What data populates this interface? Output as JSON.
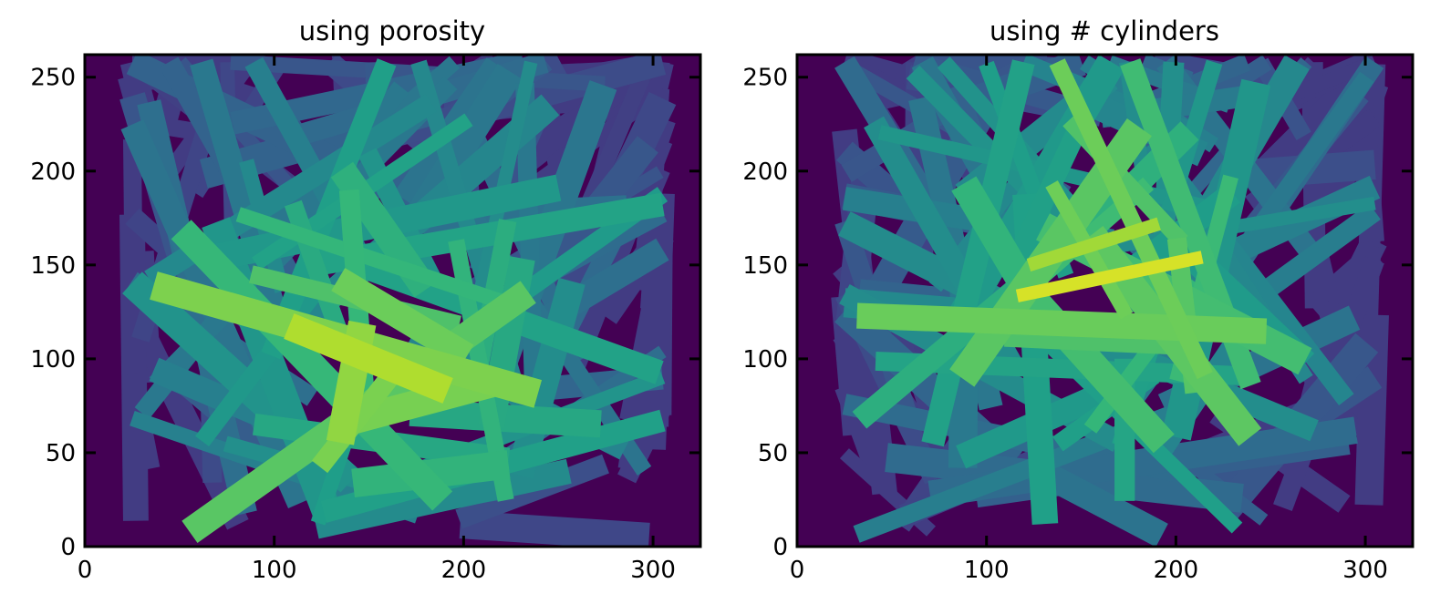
{
  "figure": {
    "colormap": "viridis",
    "background_color": "#440154",
    "accent_color_high": "#fde725"
  },
  "chart_data": [
    {
      "type": "heatmap",
      "title": "using porosity",
      "xlabel": "",
      "ylabel": "",
      "xlim": [
        0,
        325
      ],
      "ylim": [
        0,
        262
      ],
      "xticks": [
        0,
        100,
        200,
        300
      ],
      "xtick_labels": [
        "0",
        "100",
        "200",
        "300"
      ],
      "yticks": [
        0,
        50,
        100,
        150,
        200,
        250
      ],
      "ytick_labels": [
        "0",
        "50",
        "100",
        "150",
        "200",
        "250"
      ],
      "grid": false,
      "legend": "none",
      "fiber_region": {
        "x": [
          25,
          305
        ],
        "y": [
          5,
          258
        ]
      },
      "brightest_region": {
        "x": [
          140,
          185
        ],
        "y": [
          70,
          140
        ]
      }
    },
    {
      "type": "heatmap",
      "title": "using # cylinders",
      "xlabel": "",
      "ylabel": "",
      "xlim": [
        0,
        325
      ],
      "ylim": [
        0,
        262
      ],
      "xticks": [
        0,
        100,
        200,
        300
      ],
      "xtick_labels": [
        "0",
        "100",
        "200",
        "300"
      ],
      "yticks": [
        0,
        50,
        100,
        150,
        200,
        250
      ],
      "ytick_labels": [
        "0",
        "50",
        "100",
        "150",
        "200",
        "250"
      ],
      "grid": false,
      "legend": "none",
      "fiber_region": {
        "x": [
          25,
          305
        ],
        "y": [
          5,
          258
        ]
      },
      "brightest_region": {
        "x": [
          150,
          175
        ],
        "y": [
          70,
          210
        ]
      }
    }
  ]
}
